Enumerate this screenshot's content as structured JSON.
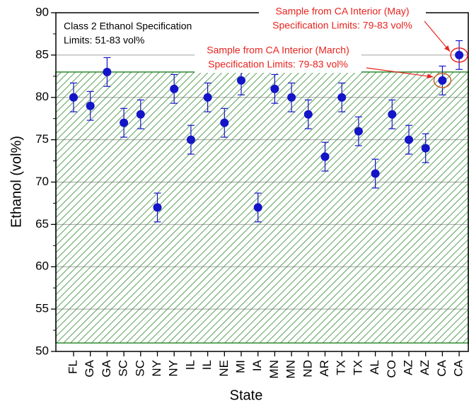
{
  "chart_data": {
    "type": "scatter",
    "x_label": "State",
    "y_label": "Ethanol (vol%)",
    "notes": [
      "Class 2 Ethanol Specification",
      "Limits: 51-83 vol%"
    ],
    "callouts": [
      {
        "lines": [
          "Sample from CA Interior (May)",
          "Specification Limits: 79-83 vol%"
        ]
      },
      {
        "lines": [
          "Sample from CA Interior (March)",
          "Specification Limits: 79-83 vol%"
        ]
      }
    ],
    "categories": [
      "FL",
      "GA",
      "GA",
      "SC",
      "SC",
      "NY",
      "NY",
      "IL",
      "IL",
      "NE",
      "MI",
      "IA",
      "MN",
      "MN",
      "ND",
      "AR",
      "TX",
      "TX",
      "AL",
      "CO",
      "AZ",
      "AZ",
      "CA",
      "CA"
    ],
    "series": [
      {
        "color": "#1414c8",
        "values": [
          80,
          79,
          83,
          77,
          78,
          67,
          81,
          75,
          80,
          77,
          82,
          67,
          81,
          80,
          78,
          73,
          80,
          76,
          71,
          78,
          75,
          74,
          82,
          85
        ],
        "errors": [
          1.7,
          1.7,
          1.7,
          1.7,
          1.7,
          1.7,
          1.7,
          1.7,
          1.7,
          1.7,
          1.7,
          1.7,
          1.7,
          1.7,
          1.7,
          1.7,
          1.7,
          1.7,
          1.7,
          1.7,
          1.7,
          1.7,
          1.7,
          1.7
        ]
      }
    ],
    "spec_band": [
      51,
      83
    ],
    "band_color": "#2e8b2e",
    "ylim": [
      50,
      90
    ],
    "yticks": [
      50,
      55,
      60,
      65,
      70,
      75,
      80,
      85,
      90
    ],
    "grid": true
  }
}
